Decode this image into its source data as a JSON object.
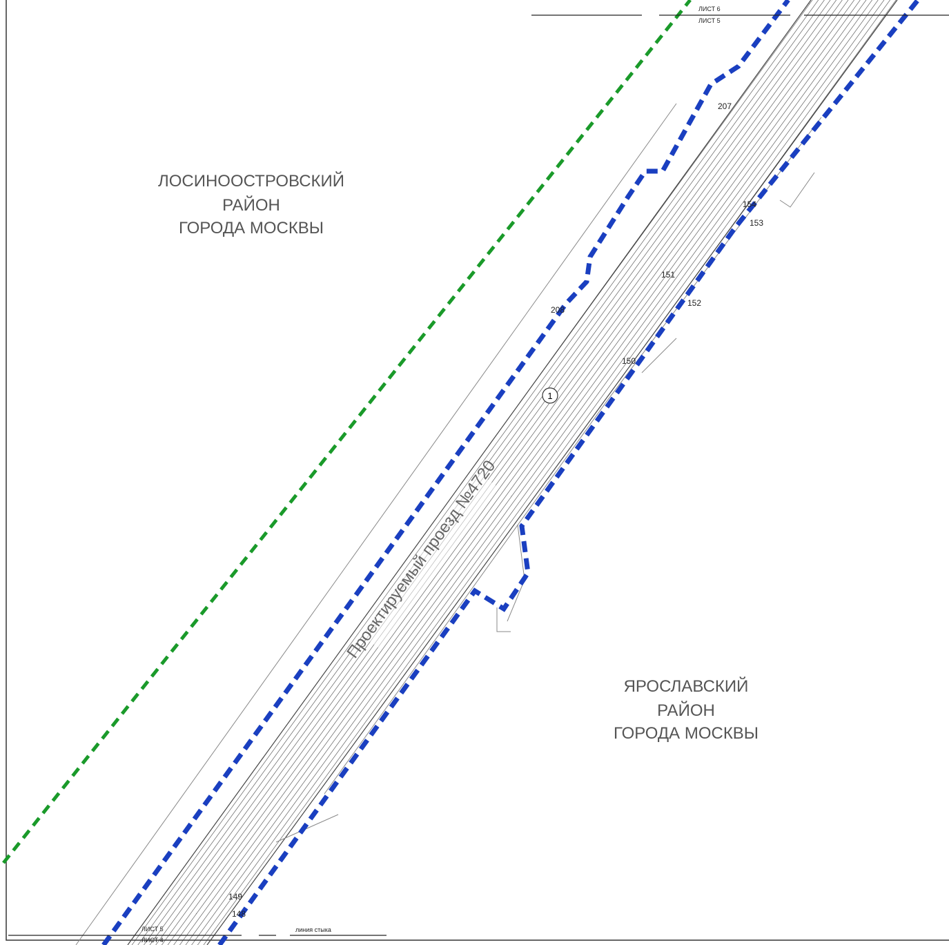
{
  "districts": [
    {
      "lines": [
        "ЛОСИНООСТРОВСКИЙ",
        "РАЙОН",
        "ГОРОДА МОСКВЫ"
      ]
    },
    {
      "lines": [
        "ЯРОСЛАВСКИЙ",
        "РАЙОН",
        "ГОРОДА МОСКВЫ"
      ]
    }
  ],
  "road": {
    "name": "Проектируемый проезд №4720",
    "zone": "1"
  },
  "points": [
    "207",
    "208",
    "154",
    "153",
    "151",
    "152",
    "150",
    "149",
    "148"
  ],
  "sheets": {
    "top": [
      "ЛИСТ 6",
      "ЛИСТ 5"
    ],
    "bottom": [
      "ЛИСТ 5",
      "ЛИСТ 4"
    ],
    "joint": "линия стыка"
  }
}
